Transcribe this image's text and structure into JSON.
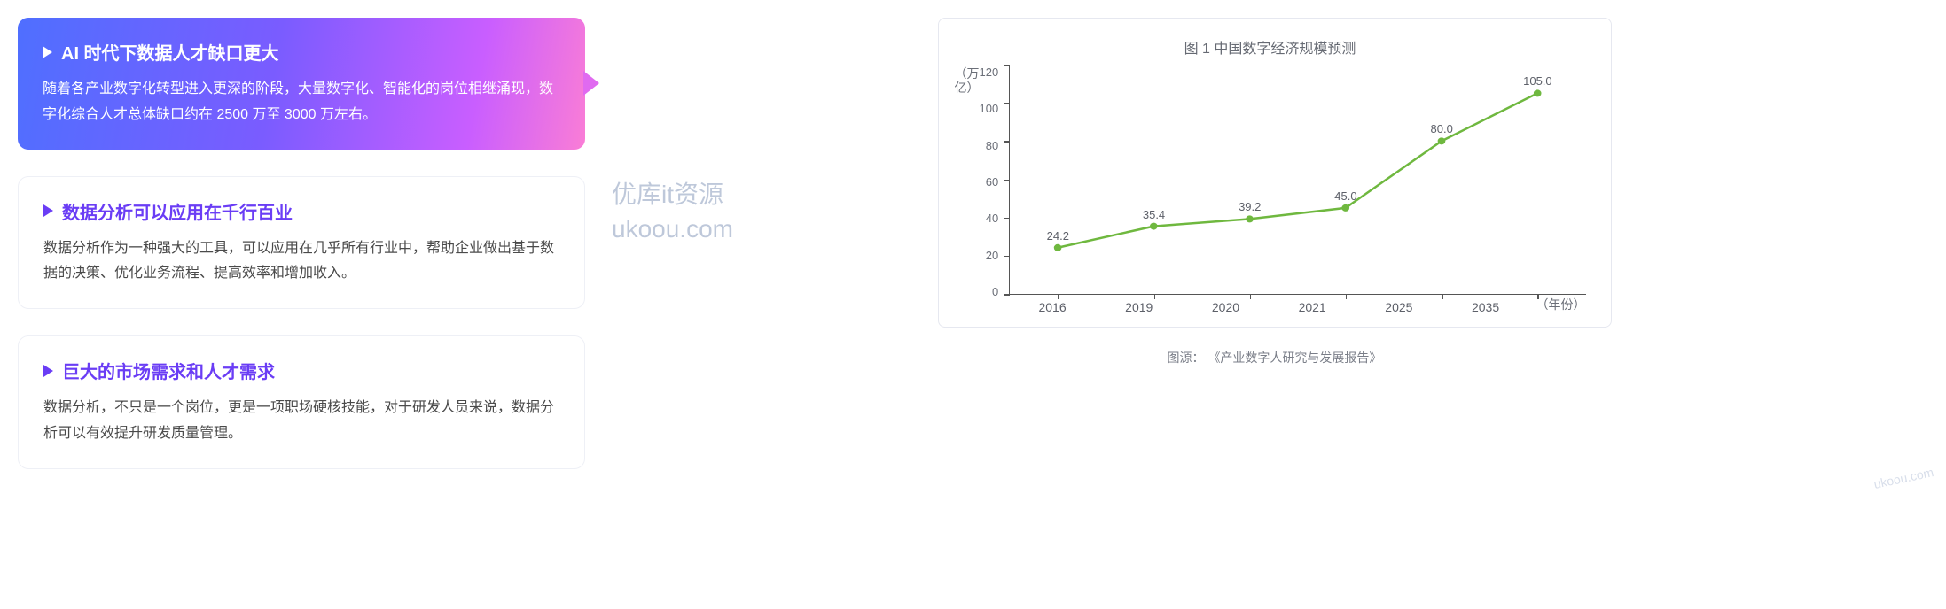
{
  "cards": [
    {
      "title": "AI 时代下数据人才缺口更大",
      "desc": "随着各产业数字化转型进入更深的阶段，大量数字化、智能化的岗位相继涌现，数字化综合人才总体缺口约在 2500 万至 3000 万左右。",
      "active": true
    },
    {
      "title": "数据分析可以应用在千行百业",
      "desc": "数据分析作为一种强大的工具，可以应用在几乎所有行业中，帮助企业做出基于数据的决策、优化业务流程、提高效率和增加收入。",
      "active": false
    },
    {
      "title": "巨大的市场需求和人才需求",
      "desc": "数据分析，不只是一个岗位，更是一项职场硬核技能，对于研发人员来说，数据分析可以有效提升研发质量管理。",
      "active": false
    }
  ],
  "chart": {
    "type": "line",
    "title": "图 1 中国数字经济规模预测",
    "y_unit": "（万亿）",
    "x_unit": "（年份）",
    "line_color": "#6fb83f",
    "line_width": 2.5,
    "marker_style": "circle",
    "marker_size": 4,
    "background_color": "#ffffff",
    "text_color": "#5d6069",
    "ylim": [
      0,
      120
    ],
    "yticks": [
      120,
      100,
      80,
      60,
      40,
      20,
      0
    ],
    "categories": [
      "2016",
      "2019",
      "2020",
      "2021",
      "2025",
      "2035"
    ],
    "values": [
      24.2,
      35.4,
      39.2,
      45.0,
      80.0,
      105.0
    ]
  },
  "source_label": "图源：",
  "source_text": "《产业数字人研究与发展报告》",
  "watermark1a": "优库it资源",
  "watermark1b": "ukoou.com",
  "watermark2": "ukoou.com"
}
